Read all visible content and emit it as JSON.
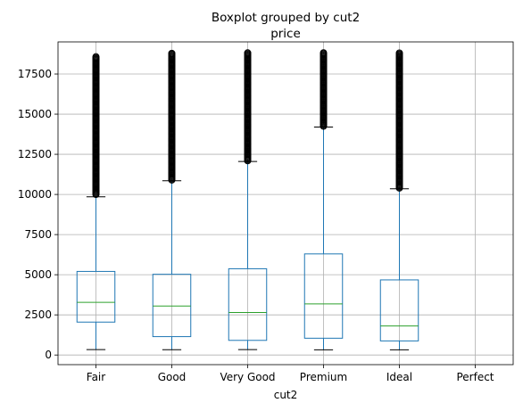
{
  "chart_data": {
    "type": "box",
    "title": "Boxplot grouped by cut2",
    "subtitle": "price",
    "xlabel": "cut2",
    "ylabel": "",
    "ylim": [
      -600,
      19500
    ],
    "yticks": [
      0,
      2500,
      5000,
      7500,
      10000,
      12500,
      15000,
      17500
    ],
    "grid": true,
    "categories": [
      "Fair",
      "Good",
      "Very Good",
      "Premium",
      "Ideal",
      "Perfect"
    ],
    "boxes": [
      {
        "category": "Fair",
        "whislo": 337,
        "q1": 2050,
        "med": 3282,
        "q3": 5206,
        "whishi": 9850,
        "outlier_range": [
          10000,
          18574
        ]
      },
      {
        "category": "Good",
        "whislo": 327,
        "q1": 1145,
        "med": 3050,
        "q3": 5028,
        "whishi": 10850,
        "outlier_range": [
          10900,
          18788
        ]
      },
      {
        "category": "Very Good",
        "whislo": 336,
        "q1": 912,
        "med": 2648,
        "q3": 5373,
        "whishi": 12050,
        "outlier_range": [
          12100,
          18818
        ]
      },
      {
        "category": "Premium",
        "whislo": 326,
        "q1": 1046,
        "med": 3185,
        "q3": 6296,
        "whishi": 14200,
        "outlier_range": [
          14250,
          18823
        ]
      },
      {
        "category": "Ideal",
        "whislo": 326,
        "q1": 878,
        "med": 1810,
        "q3": 4678,
        "whishi": 10350,
        "outlier_range": [
          10400,
          18806
        ]
      },
      {
        "category": "Perfect",
        "empty": true
      }
    ],
    "colors": {
      "box": "#1f77b4",
      "median": "#2ca02c",
      "whisker": "#000000",
      "grid": "#b0b0b0",
      "outlier": "#000000"
    }
  }
}
